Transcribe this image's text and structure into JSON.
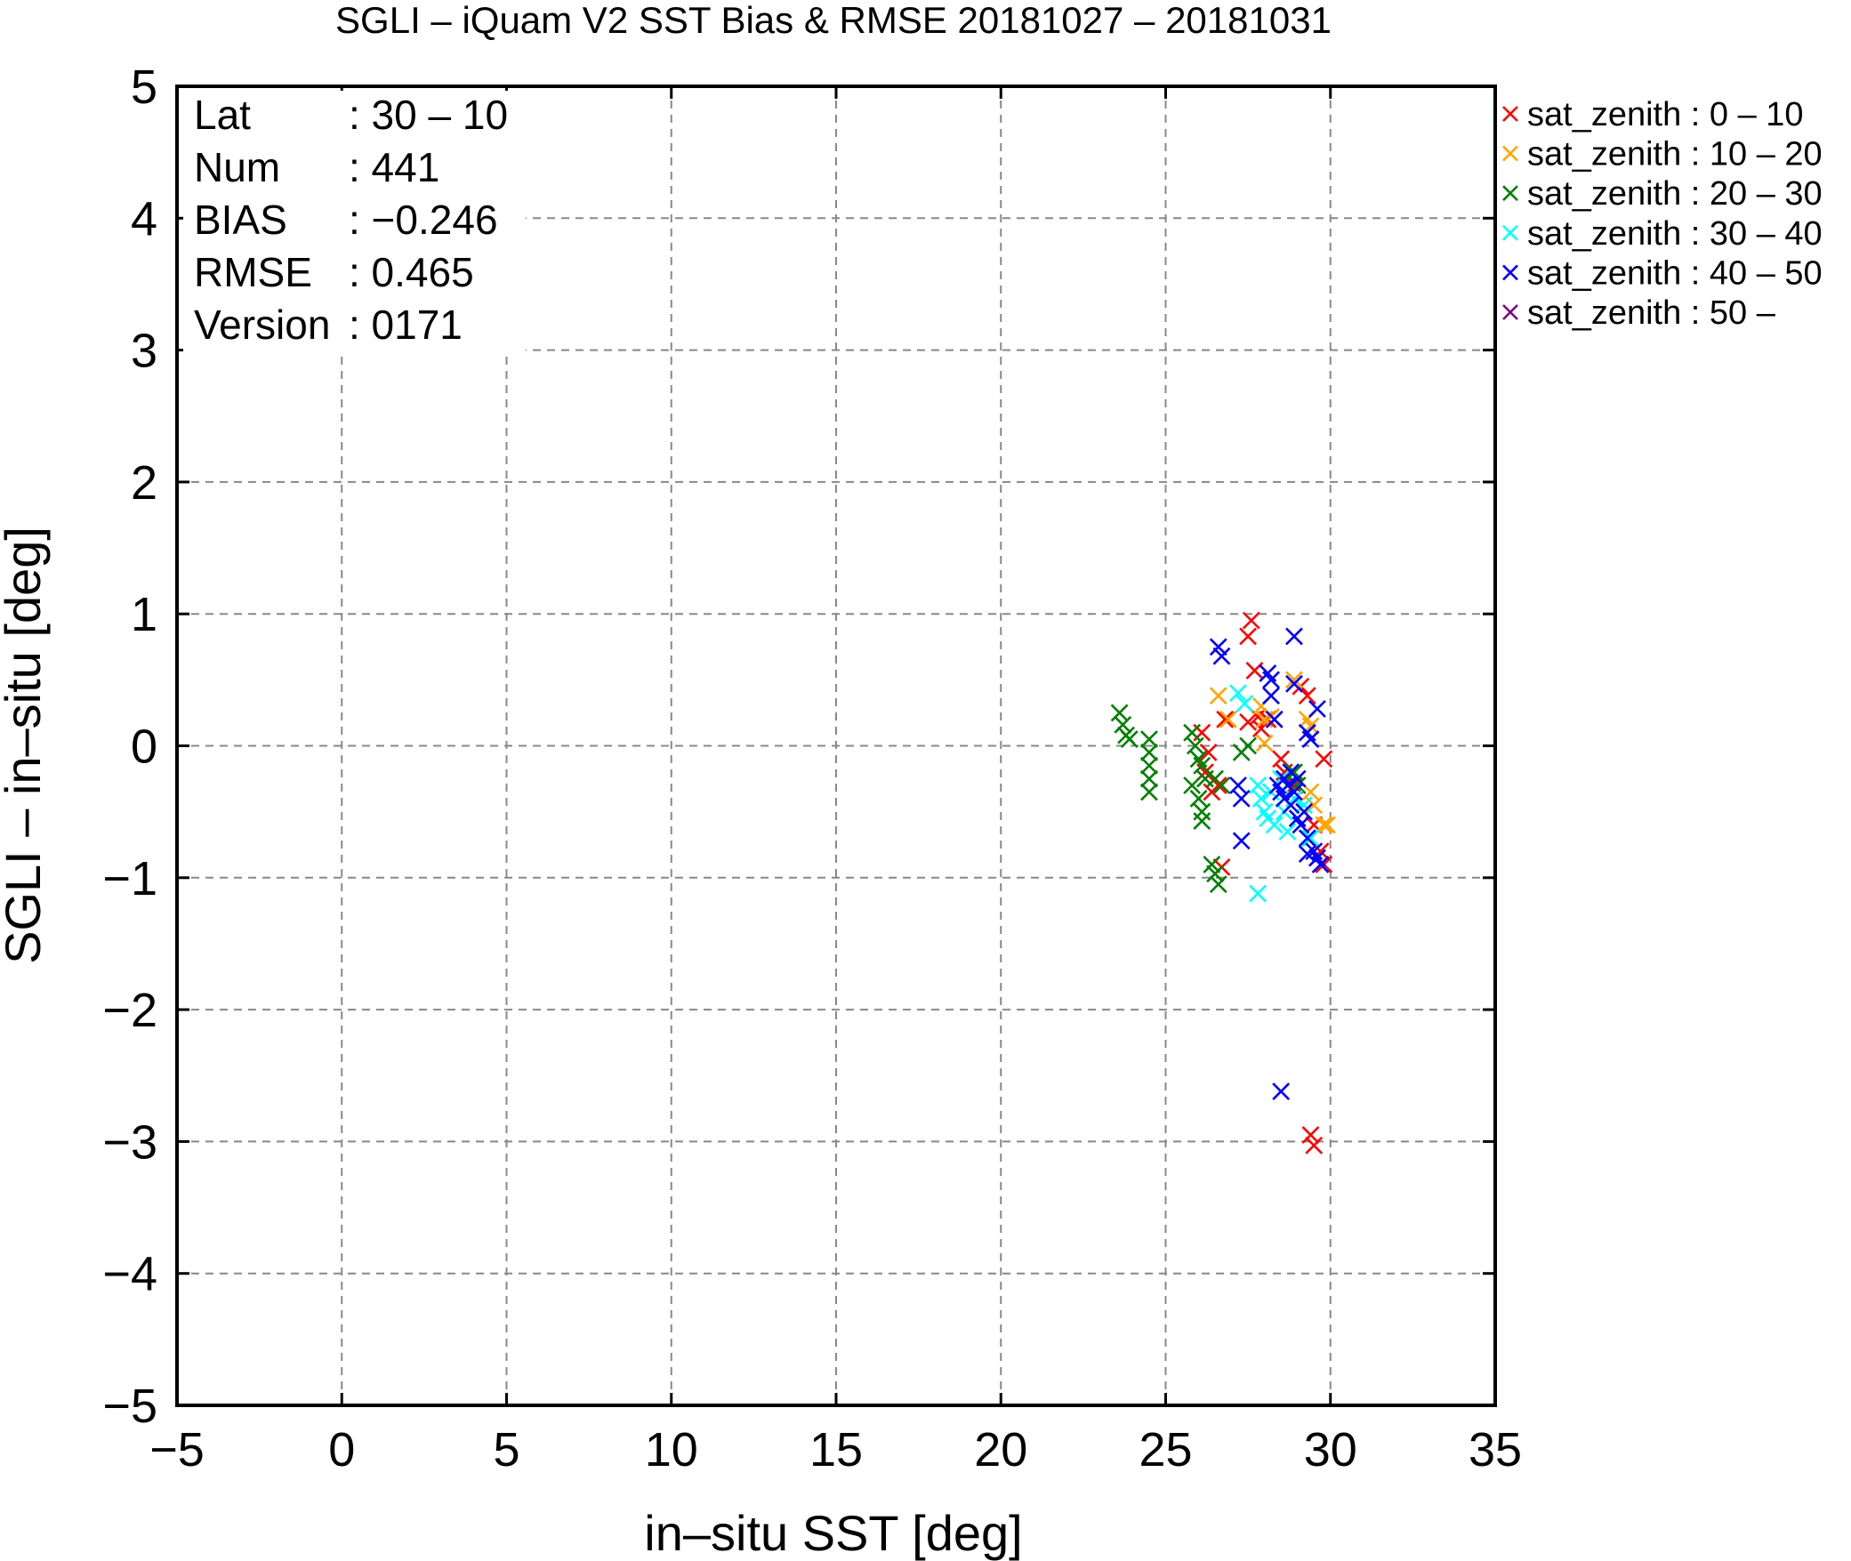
{
  "chart_data": {
    "type": "scatter",
    "title": "SGLI – iQuam V2 SST Bias & RMSE 20181027 – 20181031",
    "xlabel": "in–situ SST [deg]",
    "ylabel": "SGLI – in–situ [deg]",
    "xlim": [
      -5,
      35
    ],
    "ylim": [
      -5,
      5
    ],
    "xticks": [
      -5,
      0,
      5,
      10,
      15,
      20,
      25,
      30,
      35
    ],
    "yticks": [
      -5,
      -4,
      -3,
      -2,
      -1,
      0,
      1,
      2,
      3,
      4,
      5
    ],
    "xtick_labels": [
      "−5",
      "0",
      "5",
      "10",
      "15",
      "20",
      "25",
      "30",
      "35"
    ],
    "ytick_labels": [
      "−5",
      "−4",
      "−3",
      "−2",
      "−1",
      "0",
      "1",
      "2",
      "3",
      "4",
      "5"
    ],
    "grid": true,
    "legend_position": "outside-right-top",
    "stats": [
      {
        "key": "Lat",
        "value": ": 30 – 10"
      },
      {
        "key": "Num",
        "value": ": 441"
      },
      {
        "key": "BIAS",
        "value": ": −0.246"
      },
      {
        "key": "RMSE",
        "value": ": 0.465"
      },
      {
        "key": "Version",
        "value": ": 0171"
      }
    ],
    "series": [
      {
        "name": "sat_zenith :  0 – 10",
        "color": "#ff0000",
        "points": [
          [
            27.6,
            0.95
          ],
          [
            27.5,
            0.83
          ],
          [
            27.7,
            0.57
          ],
          [
            27.5,
            0.18
          ],
          [
            27.8,
            0.22
          ],
          [
            27.9,
            0.13
          ],
          [
            28.1,
            0.2
          ],
          [
            28.3,
            0.2
          ],
          [
            29.1,
            0.45
          ],
          [
            29.3,
            0.38
          ],
          [
            29.8,
            -0.1
          ],
          [
            26.1,
            0.1
          ],
          [
            26.3,
            -0.05
          ],
          [
            26.2,
            -0.2
          ],
          [
            26.6,
            -0.3
          ],
          [
            26.4,
            -0.35
          ],
          [
            26.7,
            -0.92
          ],
          [
            28.5,
            -0.1
          ],
          [
            28.6,
            -0.2
          ],
          [
            28.9,
            -0.3
          ],
          [
            29.5,
            -0.6
          ],
          [
            29.7,
            -0.8
          ],
          [
            29.8,
            -0.9
          ],
          [
            29.4,
            -2.95
          ],
          [
            29.5,
            -3.03
          ],
          [
            26.8,
            0.2
          ]
        ]
      },
      {
        "name": "sat_zenith : 10 – 20",
        "color": "#ffa500",
        "points": [
          [
            26.6,
            0.38
          ],
          [
            26.9,
            0.2
          ],
          [
            27.9,
            0.3
          ],
          [
            28.0,
            0.2
          ],
          [
            28.2,
            0.22
          ],
          [
            28.0,
            0.02
          ],
          [
            28.9,
            0.5
          ],
          [
            29.3,
            0.2
          ],
          [
            29.4,
            0.15
          ],
          [
            29.4,
            -0.35
          ],
          [
            29.5,
            -0.45
          ],
          [
            29.8,
            -0.6
          ],
          [
            29.9,
            -0.6
          ],
          [
            29.6,
            -0.85
          ]
        ]
      },
      {
        "name": "sat_zenith : 20 – 30",
        "color": "#008000",
        "points": [
          [
            23.6,
            0.25
          ],
          [
            23.7,
            0.16
          ],
          [
            23.8,
            0.08
          ],
          [
            23.9,
            0.05
          ],
          [
            24.5,
            0.05
          ],
          [
            24.5,
            -0.05
          ],
          [
            24.5,
            -0.15
          ],
          [
            24.5,
            -0.25
          ],
          [
            24.5,
            -0.35
          ],
          [
            25.8,
            0.1
          ],
          [
            25.9,
            0.0
          ],
          [
            26.0,
            -0.1
          ],
          [
            26.1,
            -0.15
          ],
          [
            26.2,
            -0.25
          ],
          [
            25.8,
            -0.3
          ],
          [
            26.0,
            -0.4
          ],
          [
            26.1,
            -0.5
          ],
          [
            26.1,
            -0.57
          ],
          [
            26.5,
            -0.25
          ],
          [
            26.7,
            -0.3
          ],
          [
            26.4,
            -0.9
          ],
          [
            26.5,
            -0.97
          ],
          [
            26.6,
            -1.05
          ],
          [
            27.3,
            -0.05
          ],
          [
            27.5,
            0.0
          ],
          [
            28.9,
            -0.2
          ],
          [
            29.0,
            -0.3
          ]
        ]
      },
      {
        "name": "sat_zenith : 30 – 40",
        "color": "#00ffff",
        "points": [
          [
            27.2,
            0.4
          ],
          [
            27.4,
            0.32
          ],
          [
            27.8,
            -0.3
          ],
          [
            27.9,
            -0.4
          ],
          [
            28.0,
            -0.5
          ],
          [
            28.1,
            -0.55
          ],
          [
            28.3,
            -0.6
          ],
          [
            28.5,
            -0.25
          ],
          [
            28.6,
            -0.5
          ],
          [
            28.7,
            -0.65
          ],
          [
            28.9,
            -0.4
          ],
          [
            28.2,
            -0.35
          ],
          [
            27.8,
            -1.12
          ],
          [
            29.2,
            -0.45
          ],
          [
            29.4,
            -0.7
          ]
        ]
      },
      {
        "name": "sat_zenith : 40 – 50",
        "color": "#0000ff",
        "points": [
          [
            26.6,
            0.75
          ],
          [
            26.7,
            0.68
          ],
          [
            28.1,
            0.55
          ],
          [
            28.2,
            0.5
          ],
          [
            28.2,
            0.38
          ],
          [
            28.3,
            0.2
          ],
          [
            28.9,
            0.83
          ],
          [
            28.9,
            0.47
          ],
          [
            29.3,
            0.1
          ],
          [
            29.4,
            0.05
          ],
          [
            29.6,
            0.28
          ],
          [
            27.2,
            -0.3
          ],
          [
            27.3,
            -0.4
          ],
          [
            27.3,
            -0.72
          ],
          [
            28.4,
            -0.3
          ],
          [
            28.5,
            -0.35
          ],
          [
            28.6,
            -0.25
          ],
          [
            28.6,
            -0.4
          ],
          [
            28.7,
            -0.3
          ],
          [
            28.8,
            -0.45
          ],
          [
            28.9,
            -0.35
          ],
          [
            29.0,
            -0.55
          ],
          [
            29.1,
            -0.6
          ],
          [
            29.2,
            -0.5
          ],
          [
            29.3,
            -0.7
          ],
          [
            29.5,
            -0.8
          ],
          [
            29.6,
            -0.85
          ],
          [
            29.7,
            -0.9
          ],
          [
            29.3,
            -0.82
          ],
          [
            28.5,
            -2.62
          ],
          [
            28.8,
            -0.2
          ],
          [
            29.0,
            -0.25
          ]
        ]
      },
      {
        "name": "sat_zenith : 50 –",
        "color": "#800080",
        "points": []
      }
    ]
  }
}
